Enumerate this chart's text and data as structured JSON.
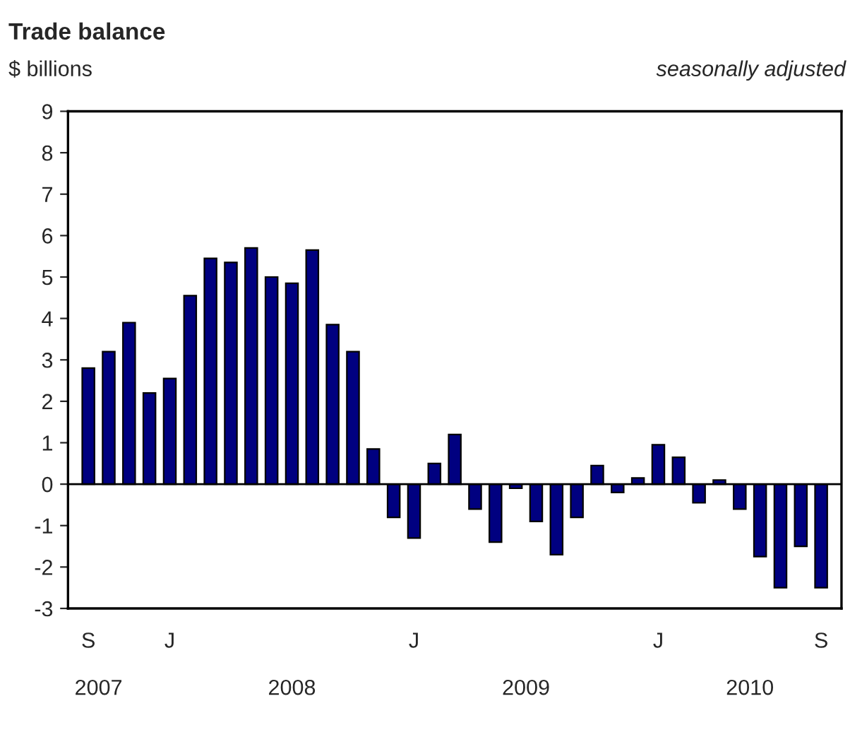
{
  "chart_data": {
    "type": "bar",
    "title": "Trade balance",
    "subtitle": "$ billions",
    "annotations": [
      "seasonally adjusted",
      "2007",
      "2008",
      "2009",
      "2010"
    ],
    "categories": [
      "S",
      null,
      null,
      null,
      "J",
      null,
      null,
      null,
      null,
      null,
      null,
      null,
      null,
      null,
      null,
      null,
      "J",
      null,
      null,
      null,
      null,
      null,
      null,
      null,
      null,
      null,
      null,
      null,
      "J",
      null,
      null,
      null,
      null,
      null,
      null,
      null,
      "S"
    ],
    "values": [
      2.8,
      3.2,
      3.9,
      2.2,
      2.55,
      4.55,
      5.45,
      5.35,
      5.7,
      5.0,
      4.85,
      5.65,
      3.85,
      3.2,
      0.85,
      -0.8,
      -1.3,
      0.5,
      1.2,
      -0.6,
      -1.4,
      -0.1,
      -0.9,
      -1.7,
      -0.8,
      0.45,
      -0.2,
      0.15,
      0.95,
      0.65,
      -0.45,
      0.1,
      -0.6,
      -1.75,
      -2.5,
      -1.5,
      -2.5
    ],
    "color": "#000080",
    "ylim": [
      -3,
      9
    ],
    "yticks": [
      -3,
      -2,
      -1,
      0,
      1,
      2,
      3,
      4,
      5,
      6,
      7,
      8,
      9
    ],
    "ref_lines": [
      {
        "axis": "y",
        "value": 0,
        "color": "#000000"
      }
    ],
    "grid": false,
    "legend": false
  }
}
